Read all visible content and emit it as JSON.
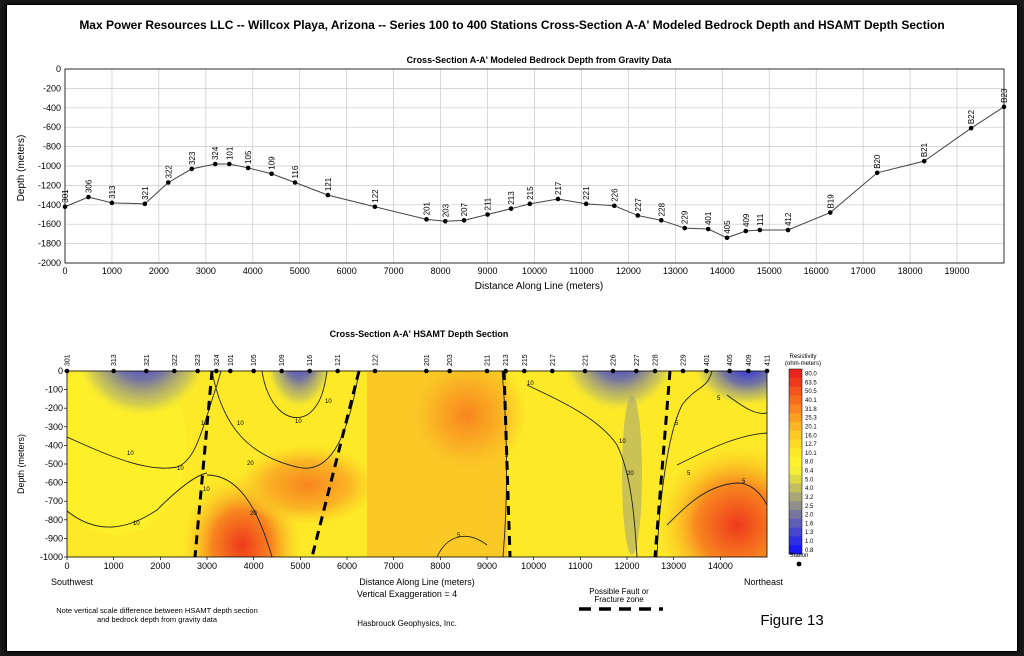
{
  "page_title": "Max Power Resources LLC -- Willcox Playa, Arizona -- Series 100 to 400 Stations Cross-Section A-A' Modeled Bedrock Depth and HSAMT Depth Section",
  "figure_label": "Figure 13",
  "chart_data": [
    {
      "type": "line",
      "title": "Cross-Section A-A' Modeled Bedrock Depth from Gravity Data",
      "xlabel": "Distance Along Line (meters)",
      "ylabel": "Depth (meters)",
      "xlim": [
        0,
        20000
      ],
      "ylim": [
        -2000,
        0
      ],
      "x_ticks": [
        0,
        1000,
        2000,
        3000,
        4000,
        5000,
        6000,
        7000,
        8000,
        9000,
        10000,
        11000,
        12000,
        13000,
        14000,
        15000,
        16000,
        17000,
        18000,
        19000
      ],
      "y_ticks": [
        0,
        -200,
        -400,
        -600,
        -800,
        -1000,
        -1200,
        -1400,
        -1600,
        -1800,
        -2000
      ],
      "grid": true,
      "points": [
        {
          "station": "301",
          "x": 0,
          "y": -1420
        },
        {
          "station": "306",
          "x": 500,
          "y": -1320
        },
        {
          "station": "313",
          "x": 1000,
          "y": -1380
        },
        {
          "station": "321",
          "x": 1700,
          "y": -1390
        },
        {
          "station": "322",
          "x": 2200,
          "y": -1170
        },
        {
          "station": "323",
          "x": 2700,
          "y": -1030
        },
        {
          "station": "324",
          "x": 3200,
          "y": -980
        },
        {
          "station": "101",
          "x": 3500,
          "y": -980
        },
        {
          "station": "105",
          "x": 3900,
          "y": -1020
        },
        {
          "station": "109",
          "x": 4400,
          "y": -1080
        },
        {
          "station": "116",
          "x": 4900,
          "y": -1170
        },
        {
          "station": "121",
          "x": 5600,
          "y": -1300
        },
        {
          "station": "122",
          "x": 6600,
          "y": -1420
        },
        {
          "station": "201",
          "x": 7700,
          "y": -1550
        },
        {
          "station": "203",
          "x": 8100,
          "y": -1570
        },
        {
          "station": "207",
          "x": 8500,
          "y": -1560
        },
        {
          "station": "211",
          "x": 9000,
          "y": -1500
        },
        {
          "station": "213",
          "x": 9500,
          "y": -1440
        },
        {
          "station": "215",
          "x": 9900,
          "y": -1390
        },
        {
          "station": "217",
          "x": 10500,
          "y": -1340
        },
        {
          "station": "221",
          "x": 11100,
          "y": -1390
        },
        {
          "station": "226",
          "x": 11700,
          "y": -1410
        },
        {
          "station": "227",
          "x": 12200,
          "y": -1510
        },
        {
          "station": "228",
          "x": 12700,
          "y": -1560
        },
        {
          "station": "229",
          "x": 13200,
          "y": -1640
        },
        {
          "station": "401",
          "x": 13700,
          "y": -1650
        },
        {
          "station": "405",
          "x": 14100,
          "y": -1740
        },
        {
          "station": "409",
          "x": 14500,
          "y": -1670
        },
        {
          "station": "111",
          "x": 14800,
          "y": -1660
        },
        {
          "station": "412",
          "x": 15400,
          "y": -1660
        },
        {
          "station": "B19",
          "x": 16300,
          "y": -1480
        },
        {
          "station": "B20",
          "x": 17300,
          "y": -1070
        },
        {
          "station": "B21",
          "x": 18300,
          "y": -950
        },
        {
          "station": "B22",
          "x": 19300,
          "y": -610
        },
        {
          "station": "B23",
          "x": 20000,
          "y": -390
        }
      ]
    },
    {
      "type": "heatmap",
      "title": "Cross-Section A-A' HSAMT Depth Section",
      "xlabel": "Distance Along Line (meters)",
      "ylabel": "Depth (meters)",
      "xlim": [
        0,
        15000
      ],
      "ylim": [
        -1000,
        0
      ],
      "x_ticks": [
        0,
        1000,
        2000,
        3000,
        4000,
        5000,
        6000,
        7000,
        8000,
        9000,
        10000,
        11000,
        12000,
        13000,
        14000
      ],
      "y_ticks": [
        0,
        -100,
        -200,
        -300,
        -400,
        -500,
        -600,
        -700,
        -800,
        -900,
        -1000
      ],
      "left_end_label": "Southwest",
      "right_end_label": "Northeast",
      "stations": [
        {
          "label": "301",
          "x": 0
        },
        {
          "label": "313",
          "x": 1000
        },
        {
          "label": "321",
          "x": 1700
        },
        {
          "label": "322",
          "x": 2300
        },
        {
          "label": "323",
          "x": 2800
        },
        {
          "label": "324",
          "x": 3200
        },
        {
          "label": "101",
          "x": 3500
        },
        {
          "label": "105",
          "x": 4000
        },
        {
          "label": "109",
          "x": 4600
        },
        {
          "label": "116",
          "x": 5200
        },
        {
          "label": "121",
          "x": 5800
        },
        {
          "label": "122",
          "x": 6600
        },
        {
          "label": "201",
          "x": 7700
        },
        {
          "label": "203",
          "x": 8200
        },
        {
          "label": "211",
          "x": 9000
        },
        {
          "label": "213",
          "x": 9400
        },
        {
          "label": "215",
          "x": 9800
        },
        {
          "label": "217",
          "x": 10400
        },
        {
          "label": "221",
          "x": 11100
        },
        {
          "label": "226",
          "x": 11700
        },
        {
          "label": "227",
          "x": 12200
        },
        {
          "label": "228",
          "x": 12600
        },
        {
          "label": "229",
          "x": 13200
        },
        {
          "label": "401",
          "x": 13700
        },
        {
          "label": "405",
          "x": 14200
        },
        {
          "label": "409",
          "x": 14600
        },
        {
          "label": "411",
          "x": 15000
        }
      ],
      "legend": {
        "title_line1": "Resistivity",
        "title_line2": "(ohm-meters)",
        "levels": [
          "80.0",
          "63.5",
          "50.5",
          "40.1",
          "31.8",
          "25.3",
          "20.1",
          "16.0",
          "12.7",
          "10.1",
          "8.0",
          "6.4",
          "5.0",
          "4.0",
          "3.2",
          "2.5",
          "2.0",
          "1.6",
          "1.3",
          "1.0",
          "0.8"
        ],
        "colors": [
          "#e8241c",
          "#ee3a1c",
          "#f3531d",
          "#f66c1f",
          "#f8851f",
          "#f99e21",
          "#fab524",
          "#fbc925",
          "#fcdb26",
          "#fde927",
          "#fef22a",
          "#f4ef33",
          "#dcd848",
          "#c2c05e",
          "#a9a874",
          "#8f908a",
          "#7676a0",
          "#5e5eb6",
          "#4646cc",
          "#2e2ee2",
          "#1a1af4"
        ],
        "station_label": "Station"
      },
      "fault_legend_label_line1": "Possible Fault or",
      "fault_legend_label_line2": "Fracture zone",
      "vertical_exaggeration": "Vertical Exaggeration = 4",
      "contour_labels": [
        "10",
        "10",
        "10",
        "10",
        "10",
        "10",
        "10",
        "10",
        "10",
        "10",
        "20",
        "20",
        "20",
        "5",
        "5",
        "5",
        "5",
        "5",
        "5",
        "5"
      ]
    }
  ],
  "footnote_line1": "Note vertical scale difference between HSAMT depth section",
  "footnote_line2": "and bedrock depth from gravity data",
  "credit": "Hasbrouck Geophysics, Inc."
}
